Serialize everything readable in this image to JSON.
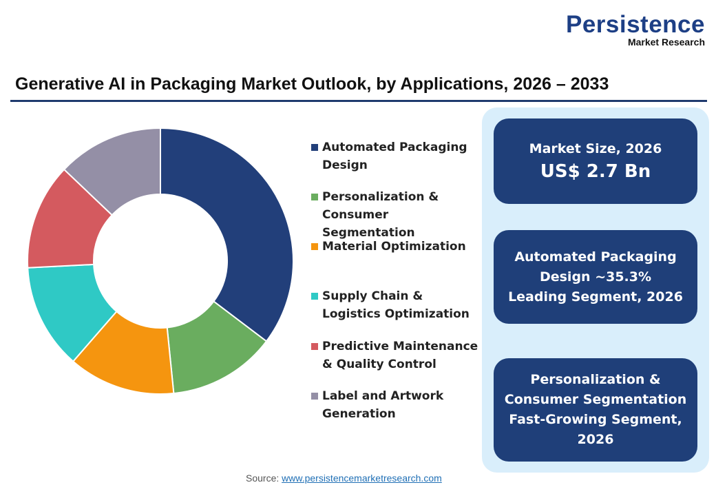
{
  "logo": {
    "line1": "Persistence",
    "line2": "Market Research"
  },
  "title": "Generative AI in Packaging Market Outlook, by Applications, 2026 – 2033",
  "chart_data": {
    "type": "pie",
    "donut": true,
    "categories": [
      "Automated Packaging Design",
      "Personalization & Consumer Segmentation",
      "Material Optimization",
      "Supply Chain & Logistics Optimization",
      "Predictive Maintenance & Quality Control",
      "Label and Artwork Generation"
    ],
    "values": [
      35.3,
      13.1,
      13.0,
      12.8,
      12.9,
      12.9
    ],
    "colors": [
      "#223f7a",
      "#6aad5f",
      "#f5950f",
      "#2fc9c5",
      "#d45a5f",
      "#948fa6"
    ],
    "legend_position": "right"
  },
  "panel": {
    "box1": {
      "label": "Market Size, 2026",
      "value": "US$ 2.7 Bn"
    },
    "box2": {
      "lines": [
        "Automated Packaging",
        "Design ~35.3%",
        "Leading Segment, 2026"
      ]
    },
    "box3": {
      "lines": [
        "Personalization &",
        "Consumer Segmentation",
        "Fast-Growing Segment,",
        "2026"
      ]
    }
  },
  "source": {
    "label": "Source:",
    "url": "www.persistencemarketresearch.com"
  }
}
